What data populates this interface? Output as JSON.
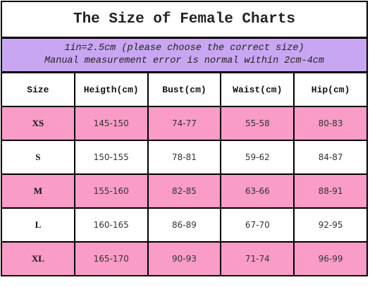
{
  "header": {
    "title": "The Size of Female Charts",
    "notes": [
      "1in=2.5cm (please choose the correct size)",
      "Manual measurement error is normal within 2cm-4cm"
    ]
  },
  "table": {
    "columns": [
      "Size",
      "Heigth(cm)",
      "Bust(cm)",
      "Waist(cm)",
      "Hip(cm)"
    ],
    "rows": [
      [
        "XS",
        "145-150",
        "74-77",
        "55-58",
        "80-83"
      ],
      [
        "S",
        "150-155",
        "78-81",
        "59-62",
        "84-87"
      ],
      [
        "M",
        "155-160",
        "82-85",
        "63-66",
        "88-91"
      ],
      [
        "L",
        "160-165",
        "86-89",
        "67-70",
        "92-95"
      ],
      [
        "XL",
        "165-170",
        "90-93",
        "71-74",
        "96-99"
      ]
    ]
  }
}
